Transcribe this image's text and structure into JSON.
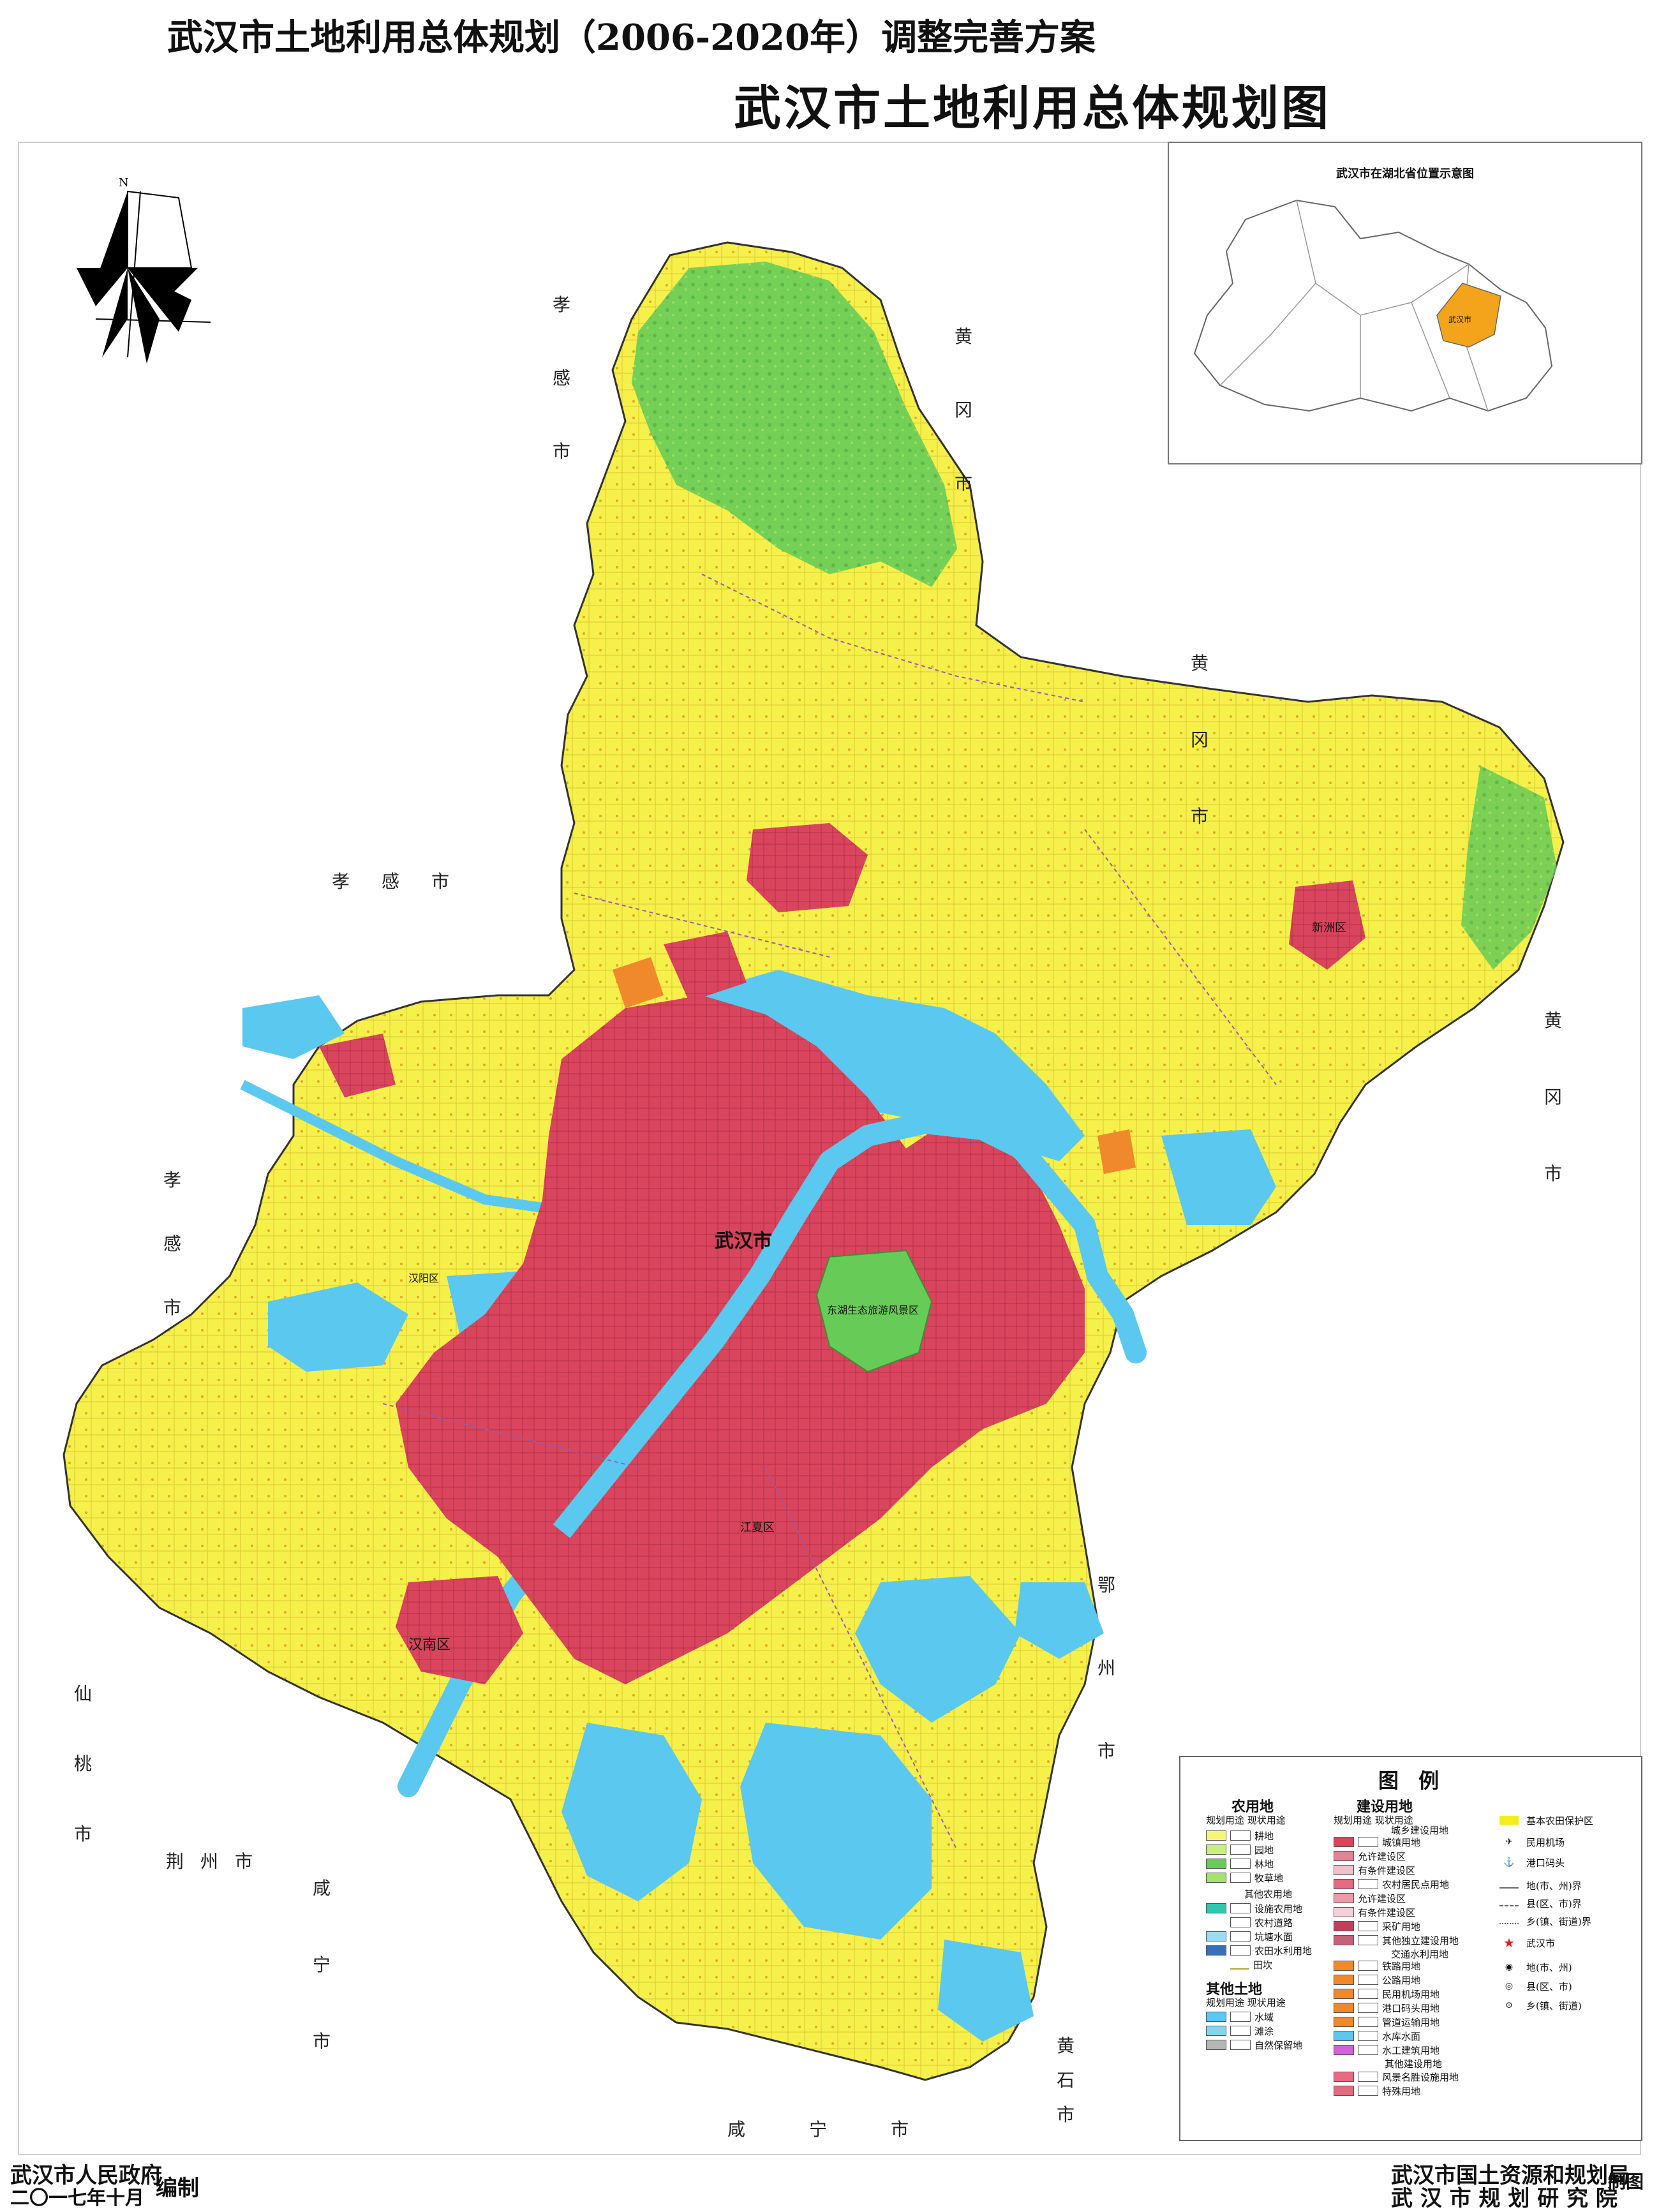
{
  "header": {
    "subtitle": "武汉市土地利用总体规划（2006-2020年）调整完善方案",
    "title": "武汉市土地利用总体规划图"
  },
  "north_arrow": {
    "label": "N"
  },
  "inset": {
    "title": "武汉市在湖北省位置示意图",
    "highlight_label": "武汉市",
    "highlight_color": "#f4a41a"
  },
  "neighbors": {
    "xiaogan_top": "孝感市",
    "huanggang_top": "黄冈市",
    "xiaogan_mid": "孝感市",
    "huanggang_east": "黄冈市",
    "xiaogan_west": "孝感市",
    "huanggang_far": "黄冈市",
    "xiantao": "仙桃市",
    "jingzhou": "荆州市",
    "xianning_sw": "咸宁市",
    "ezhou": "鄂州市",
    "xianning_s": "咸宁市",
    "huangshi": "黄石市"
  },
  "map_labels": {
    "wuhan": "武汉市",
    "donghu": "东湖生态旅游风景区",
    "jiangxia": "江夏区",
    "hannan": "汉南区",
    "xinzhou": "新洲区",
    "hanyang": "汉阳区"
  },
  "legend": {
    "title": "图 例",
    "agri": {
      "heading": "农用地",
      "sub": "规划用途  现状用途",
      "items": [
        "耕地",
        "园地",
        "林地",
        "牧草地"
      ],
      "other_heading": "其他农用地",
      "other_items": [
        "设施农用地",
        "农村道路",
        "坑塘水面",
        "农田水利用地",
        "田坎"
      ]
    },
    "other_land": {
      "heading": "其他土地",
      "sub": "规划用途  现状用途",
      "items": [
        "水域",
        "滩涂",
        "自然保留地"
      ]
    },
    "construction": {
      "heading": "建设用地",
      "sub": "规划用途  现状用途",
      "group1": "城乡建设用地",
      "items": [
        "城镇用地",
        "允许建设区",
        "有条件建设区",
        "农村居民点用地",
        "允许建设区",
        "有条件建设区",
        "采矿用地",
        "其他独立建设用地",
        "交通水利用地",
        "铁路用地",
        "公路用地",
        "民用机场用地",
        "港口码头用地",
        "管道运输用地",
        "水库水面",
        "水工建筑用地",
        "其他建设用地",
        "风景名胜设施用地",
        "特殊用地"
      ]
    },
    "symbols": {
      "items": [
        "基本农田保护区",
        "民用机场",
        "港口码头",
        "地(市、州)界",
        "县(区、市)界",
        "乡(镇、街道)界",
        "武汉市",
        "地(市、州)",
        "县(区、市)",
        "乡(镇、街道)"
      ]
    },
    "colors": {
      "cropland": "#f6f676",
      "garden": "#c9f07a",
      "forest": "#67cc57",
      "grass": "#a8e06c",
      "facility": "#2fc7b0",
      "water": "#5bc8ef",
      "urban": "#d8455c",
      "basic_farm": "#f5ec1e",
      "town_orange": "#f0892b"
    }
  },
  "footer": {
    "left_org": "武汉市人民政府",
    "left_date": "二〇一七年十月",
    "left_action": "编制",
    "right_org1": "武汉市国土资源和规划局",
    "right_org2": "武 汉 市 规 划 研 究 院",
    "right_action": "制图"
  }
}
